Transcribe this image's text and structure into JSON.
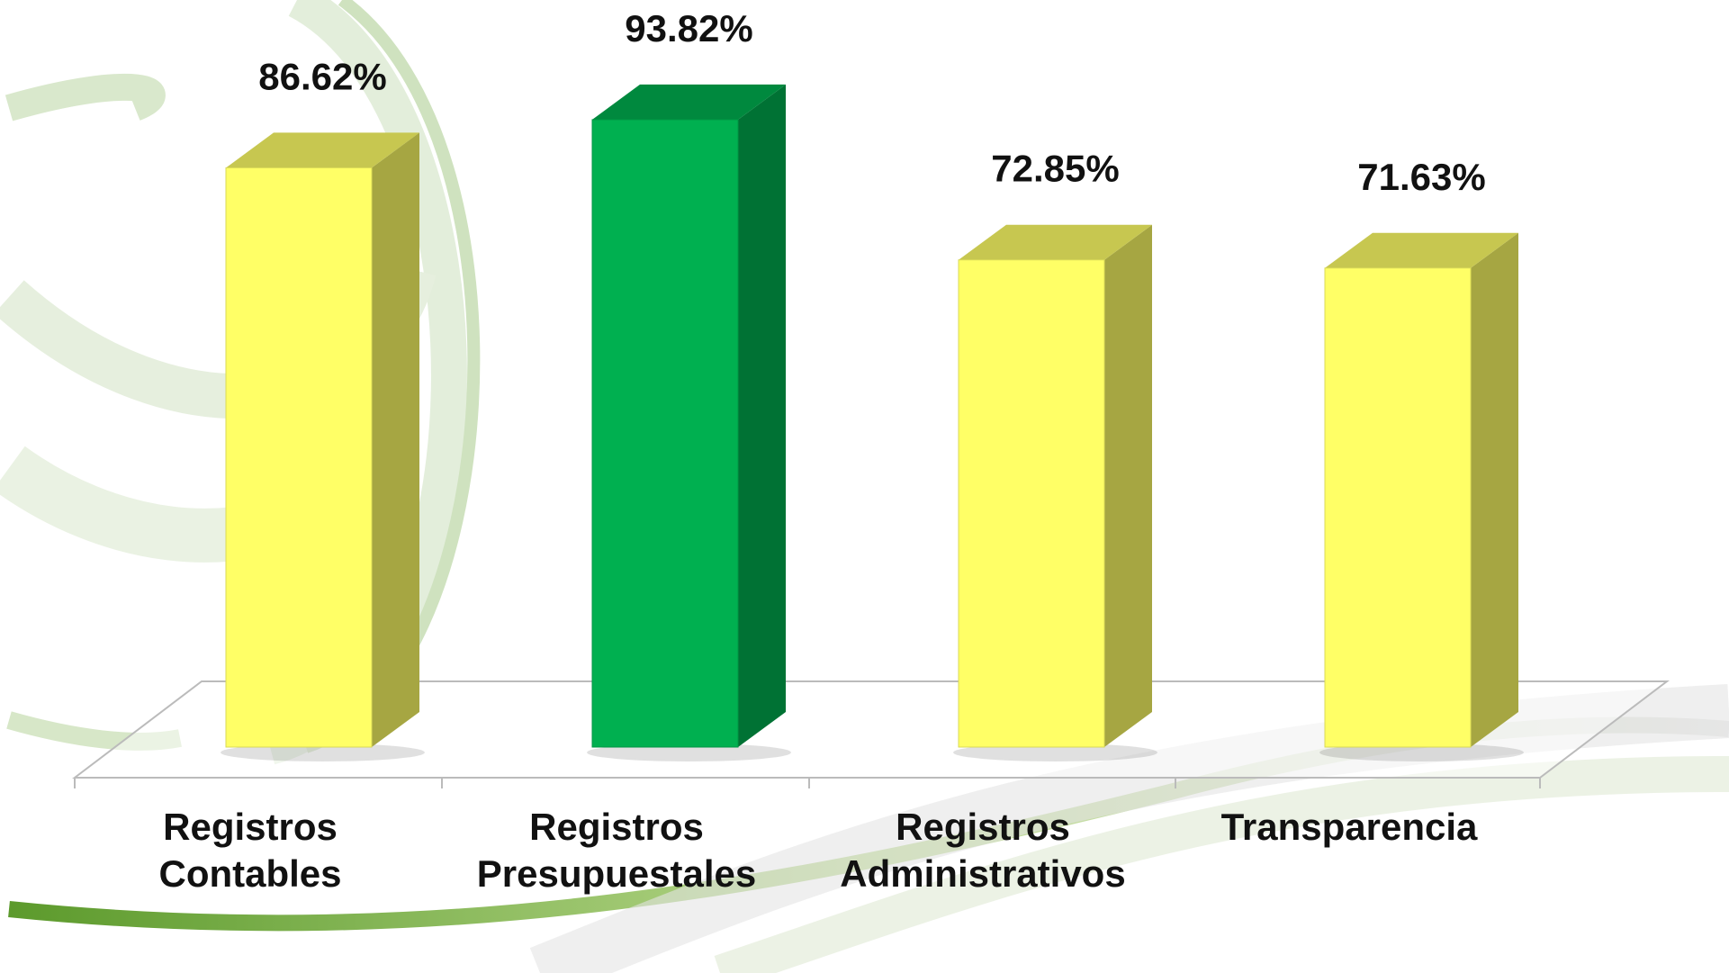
{
  "chart_data": {
    "type": "bar3d",
    "categories": [
      "Registros Contables",
      "Registros Presupuestales",
      "Registros Administrativos",
      "Transparencia"
    ],
    "values": [
      86.62,
      93.82,
      72.85,
      71.63
    ],
    "value_labels": [
      "86.62%",
      "93.82%",
      "72.85%",
      "71.63%"
    ],
    "colors": [
      "#ffff66",
      "#00b050",
      "#ffff66",
      "#ffff66"
    ]
  }
}
